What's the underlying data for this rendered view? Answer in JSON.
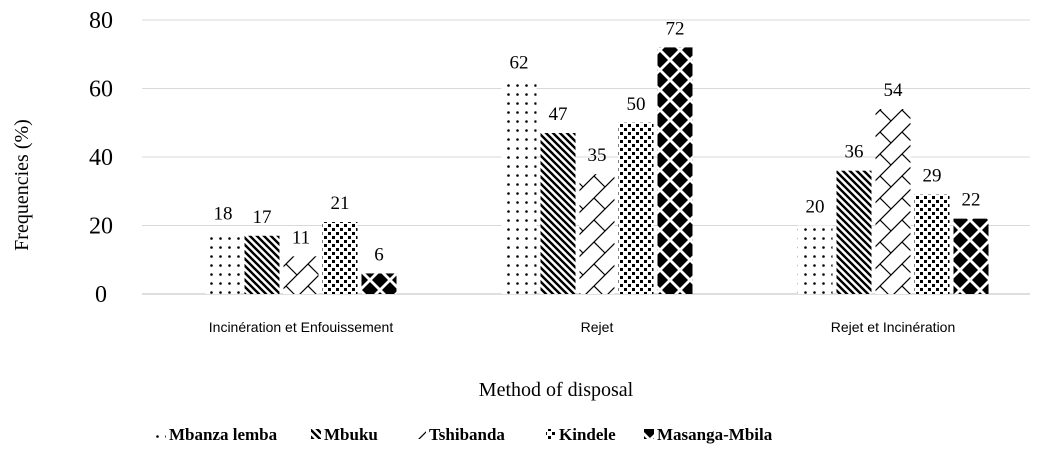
{
  "chart_data": {
    "type": "bar",
    "categories": [
      "Incinération et Enfouissement",
      "Rejet",
      "Rejet et Incinération"
    ],
    "series": [
      {
        "name": "Mbanza lemba",
        "pattern": "dots",
        "values": [
          18,
          62,
          20
        ]
      },
      {
        "name": "Mbuku",
        "pattern": "diagonal-stripes",
        "values": [
          17,
          47,
          36
        ]
      },
      {
        "name": "Tshibanda",
        "pattern": "zigzag",
        "values": [
          11,
          35,
          54
        ]
      },
      {
        "name": "Kindele",
        "pattern": "checker",
        "values": [
          21,
          50,
          29
        ]
      },
      {
        "name": "Masanga-Mbila",
        "pattern": "diamonds",
        "values": [
          6,
          72,
          22
        ]
      }
    ],
    "xlabel": "Method of disposal",
    "ylabel": "Frequencies (%)",
    "ylim": [
      0,
      80
    ],
    "yticks": [
      0,
      20,
      40,
      60,
      80
    ],
    "grid": true,
    "legend": "bottom",
    "colors": {
      "ink": "#000000",
      "grid": "#d9d9d9",
      "background": "#ffffff"
    }
  }
}
